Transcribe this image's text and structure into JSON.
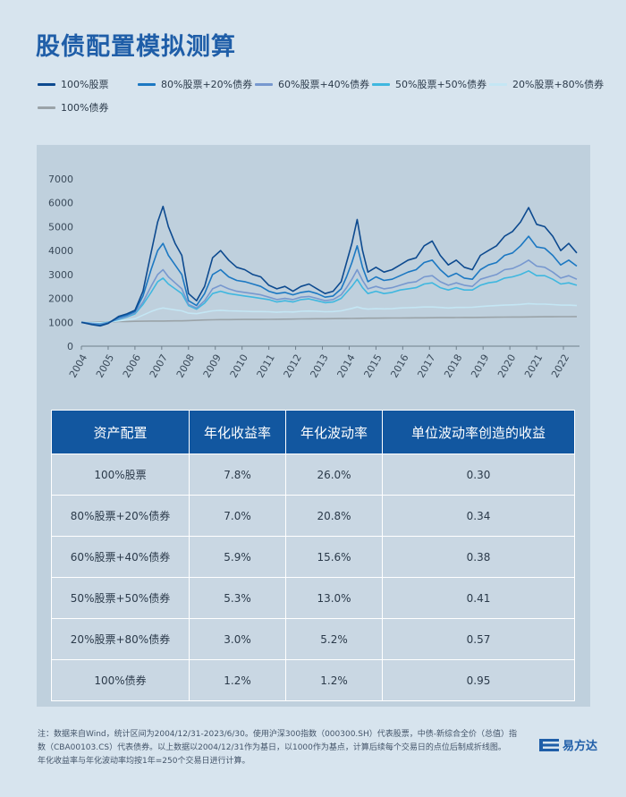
{
  "title": "股债配置模拟测算",
  "colors": {
    "s100": "#0d4a8f",
    "s80": "#1c78c2",
    "s60": "#7798cf",
    "s50": "#3fb7df",
    "s20": "#c4e6f4",
    "b100": "#9aa3a8"
  },
  "legend": [
    {
      "label": "100%股票",
      "color": "#0d4a8f"
    },
    {
      "label": "80%股票+20%债券",
      "color": "#1c78c2"
    },
    {
      "label": "60%股票+40%债券",
      "color": "#7798cf"
    },
    {
      "label": "50%股票+50%债券",
      "color": "#3fb7df"
    },
    {
      "label": "20%股票+80%债券",
      "color": "#c4e6f4"
    },
    {
      "label": "100%债券",
      "color": "#9aa3a8"
    }
  ],
  "chart_data": {
    "type": "line",
    "title": "",
    "xlabel": "",
    "ylabel": "",
    "ylim": [
      0,
      7000
    ],
    "xlim": [
      2004,
      2022.6
    ],
    "y_ticks": [
      "0",
      "1000",
      "2000",
      "3000",
      "4000",
      "5000",
      "6000",
      "7000"
    ],
    "x_ticks": [
      "2004",
      "2005",
      "2006",
      "2007",
      "2008",
      "2009",
      "2010",
      "2011",
      "2012",
      "2013",
      "2014",
      "2015",
      "2016",
      "2017",
      "2018",
      "2019",
      "2020",
      "2021",
      "2022"
    ],
    "x": [
      2004.0,
      2004.4,
      2004.7,
      2005.0,
      2005.4,
      2005.7,
      2006.0,
      2006.3,
      2006.6,
      2006.85,
      2007.05,
      2007.25,
      2007.5,
      2007.75,
      2008.0,
      2008.3,
      2008.6,
      2008.9,
      2009.2,
      2009.5,
      2009.8,
      2010.1,
      2010.4,
      2010.7,
      2011.0,
      2011.3,
      2011.6,
      2011.9,
      2012.2,
      2012.5,
      2012.8,
      2013.1,
      2013.4,
      2013.7,
      2013.9,
      2014.1,
      2014.3,
      2014.5,
      2014.7,
      2015.0,
      2015.3,
      2015.6,
      2015.9,
      2016.2,
      2016.5,
      2016.8,
      2017.1,
      2017.4,
      2017.7,
      2018.0,
      2018.3,
      2018.6,
      2018.9,
      2019.2,
      2019.5,
      2019.8,
      2020.1,
      2020.4,
      2020.7,
      2021.0,
      2021.3,
      2021.6,
      2021.9,
      2022.2,
      2022.5
    ],
    "series": [
      {
        "name": "100%股票",
        "values": [
          1000,
          900,
          850,
          950,
          1250,
          1350,
          1500,
          2300,
          3900,
          5200,
          5850,
          5000,
          4300,
          3800,
          2200,
          1900,
          2500,
          3700,
          4000,
          3600,
          3300,
          3200,
          3000,
          2900,
          2550,
          2400,
          2500,
          2300,
          2500,
          2600,
          2400,
          2200,
          2300,
          2700,
          3500,
          4300,
          5300,
          4000,
          3100,
          3300,
          3100,
          3200,
          3400,
          3600,
          3700,
          4200,
          4400,
          3800,
          3400,
          3600,
          3300,
          3200,
          3800,
          4000,
          4200,
          4600,
          4800,
          5200,
          5800,
          5100,
          5000,
          4600,
          4000,
          4300,
          3900
        ]
      },
      {
        "name": "80%股票+20%债券",
        "values": [
          1000,
          920,
          880,
          970,
          1200,
          1300,
          1450,
          2100,
          3200,
          4000,
          4300,
          3800,
          3400,
          3000,
          1900,
          1700,
          2200,
          3000,
          3200,
          2900,
          2750,
          2700,
          2600,
          2500,
          2300,
          2200,
          2250,
          2150,
          2250,
          2300,
          2200,
          2050,
          2100,
          2400,
          2900,
          3500,
          4200,
          3300,
          2700,
          2900,
          2750,
          2800,
          2950,
          3100,
          3200,
          3500,
          3600,
          3200,
          2900,
          3050,
          2850,
          2800,
          3200,
          3400,
          3500,
          3800,
          3900,
          4200,
          4600,
          4150,
          4100,
          3800,
          3400,
          3600,
          3350
        ]
      },
      {
        "name": "60%股票+40%债券",
        "values": [
          1000,
          950,
          920,
          990,
          1150,
          1250,
          1400,
          1850,
          2500,
          3000,
          3200,
          2900,
          2650,
          2400,
          1750,
          1600,
          1900,
          2400,
          2550,
          2400,
          2300,
          2250,
          2200,
          2150,
          2050,
          1950,
          2000,
          1950,
          2050,
          2080,
          2000,
          1900,
          1950,
          2150,
          2450,
          2800,
          3200,
          2750,
          2400,
          2500,
          2400,
          2450,
          2550,
          2650,
          2700,
          2900,
          2950,
          2700,
          2550,
          2650,
          2550,
          2500,
          2800,
          2900,
          3000,
          3200,
          3250,
          3400,
          3600,
          3350,
          3300,
          3100,
          2850,
          2950,
          2800
        ]
      },
      {
        "name": "50%股票+50%债券",
        "values": [
          1000,
          960,
          940,
          1000,
          1120,
          1220,
          1350,
          1750,
          2250,
          2700,
          2850,
          2600,
          2400,
          2200,
          1700,
          1550,
          1800,
          2200,
          2300,
          2200,
          2150,
          2100,
          2050,
          2000,
          1950,
          1850,
          1900,
          1850,
          1950,
          1980,
          1900,
          1820,
          1850,
          2000,
          2250,
          2500,
          2800,
          2450,
          2200,
          2300,
          2200,
          2250,
          2350,
          2400,
          2450,
          2600,
          2650,
          2450,
          2350,
          2450,
          2350,
          2350,
          2550,
          2650,
          2700,
          2850,
          2900,
          3000,
          3150,
          2950,
          2950,
          2800,
          2600,
          2650,
          2550
        ]
      },
      {
        "name": "20%股票+80%债券",
        "values": [
          1000,
          990,
          980,
          1010,
          1060,
          1100,
          1150,
          1300,
          1450,
          1550,
          1600,
          1560,
          1520,
          1480,
          1380,
          1360,
          1420,
          1480,
          1500,
          1480,
          1470,
          1460,
          1450,
          1450,
          1440,
          1420,
          1440,
          1430,
          1460,
          1470,
          1460,
          1440,
          1450,
          1480,
          1530,
          1580,
          1640,
          1580,
          1550,
          1570,
          1560,
          1570,
          1600,
          1610,
          1620,
          1640,
          1640,
          1620,
          1600,
          1620,
          1620,
          1630,
          1660,
          1680,
          1700,
          1720,
          1730,
          1750,
          1780,
          1760,
          1760,
          1740,
          1720,
          1720,
          1700
        ]
      },
      {
        "name": "100%债券",
        "values": [
          1000,
          1005,
          1010,
          1020,
          1030,
          1035,
          1040,
          1045,
          1050,
          1052,
          1053,
          1055,
          1058,
          1060,
          1070,
          1080,
          1095,
          1105,
          1110,
          1112,
          1115,
          1118,
          1120,
          1120,
          1122,
          1125,
          1130,
          1135,
          1140,
          1145,
          1148,
          1150,
          1152,
          1155,
          1158,
          1160,
          1165,
          1168,
          1170,
          1172,
          1175,
          1178,
          1180,
          1183,
          1185,
          1188,
          1190,
          1193,
          1195,
          1198,
          1200,
          1203,
          1206,
          1210,
          1213,
          1216,
          1220,
          1222,
          1225,
          1228,
          1230,
          1232,
          1235,
          1237,
          1240
        ]
      }
    ]
  },
  "table": {
    "headers": [
      "资产配置",
      "年化收益率",
      "年化波动率",
      "单位波动率创造的收益"
    ],
    "rows": [
      [
        "100%股票",
        "7.8%",
        "26.0%",
        "0.30"
      ],
      [
        "80%股票+20%债券",
        "7.0%",
        "20.8%",
        "0.34"
      ],
      [
        "60%股票+40%债券",
        "5.9%",
        "15.6%",
        "0.38"
      ],
      [
        "50%股票+50%债券",
        "5.3%",
        "13.0%",
        "0.41"
      ],
      [
        "20%股票+80%债券",
        "3.0%",
        "5.2%",
        "0.57"
      ],
      [
        "100%债券",
        "1.2%",
        "1.2%",
        "0.95"
      ]
    ]
  },
  "footnote": [
    "注：数据来自Wind，统计区间为2004/12/31-2023/6/30。使用沪深300指数（000300.SH）代表股票，中债-新综合全价（总值）指",
    "数（CBA00103.CS）代表债券。以上数据以2004/12/31作为基日，以1000作为基点，计算后续每个交易日的点位后制成折线图。",
    "年化收益率与年化波动率均按1年=250个交易日进行计算。"
  ],
  "logo": {
    "text": "易方达",
    "icon": "e-fund-logo-icon"
  }
}
